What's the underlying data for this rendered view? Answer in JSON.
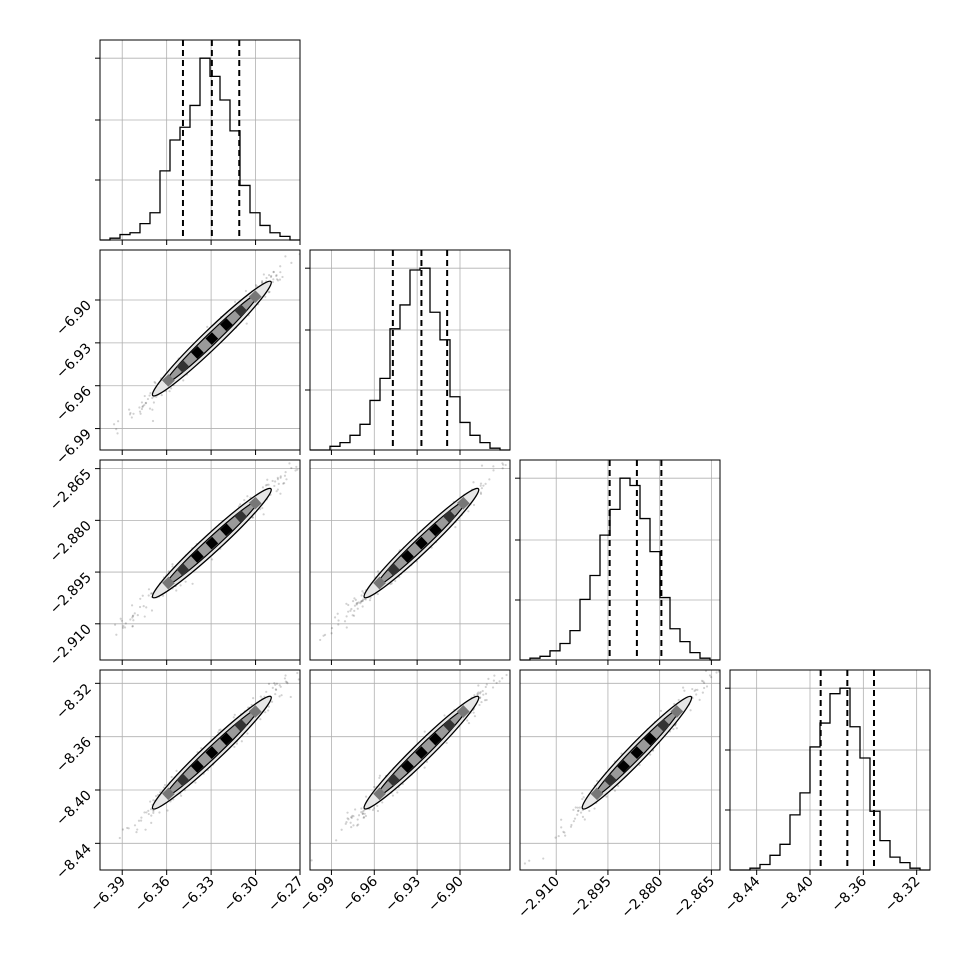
{
  "chart_data": {
    "type": "corner",
    "title": "",
    "parameters": [
      {
        "range": [
          -6.405,
          -6.27
        ],
        "ticks": [
          "−6.39",
          "−6.36",
          "−6.33",
          "−6.30",
          "−6.27"
        ],
        "tick_values": [
          -6.39,
          -6.36,
          -6.33,
          -6.3,
          -6.27
        ],
        "quantiles": [
          -6.349,
          -6.3295,
          -6.311
        ],
        "hist": {
          "edges_start": -6.405,
          "bin_width": 0.00675,
          "counts": [
            0,
            0.01,
            0.03,
            0.04,
            0.09,
            0.15,
            0.38,
            0.55,
            0.62,
            0.74,
            1.0,
            0.9,
            0.77,
            0.6,
            0.3,
            0.15,
            0.08,
            0.04,
            0.02,
            0
          ]
        }
      },
      {
        "range": [
          -7.005,
          -6.865
        ],
        "ticks": [
          "−6.99",
          "−6.96",
          "−6.93",
          "−6.90"
        ],
        "tick_values": [
          -6.99,
          -6.96,
          -6.93,
          -6.9
        ],
        "quantiles": [
          -6.947,
          -6.927,
          -6.909
        ],
        "hist": {
          "edges_start": -7.005,
          "bin_width": 0.007,
          "counts": [
            0,
            0,
            0.02,
            0.04,
            0.08,
            0.14,
            0.27,
            0.39,
            0.66,
            0.79,
            0.98,
            0.99,
            0.75,
            0.6,
            0.29,
            0.15,
            0.08,
            0.04,
            0.01,
            0
          ]
        }
      },
      {
        "range": [
          -2.9205,
          -2.8625
        ],
        "ticks": [
          "−2.910",
          "−2.895",
          "−2.880",
          "−2.865"
        ],
        "tick_values": [
          -2.91,
          -2.895,
          -2.88,
          -2.865
        ],
        "quantiles": [
          -2.8945,
          -2.8866,
          -2.8795
        ],
        "hist": {
          "edges_start": -2.9205,
          "bin_width": 0.0029,
          "counts": [
            0,
            0.01,
            0.02,
            0.05,
            0.09,
            0.16,
            0.33,
            0.46,
            0.68,
            0.82,
            0.99,
            0.95,
            0.77,
            0.59,
            0.34,
            0.17,
            0.1,
            0.04,
            0.01,
            0
          ]
        }
      },
      {
        "range": [
          -8.46,
          -8.31
        ],
        "ticks": [
          "−8.44",
          "−8.40",
          "−8.36",
          "−8.32"
        ],
        "tick_values": [
          -8.44,
          -8.4,
          -8.36,
          -8.32
        ],
        "quantiles": [
          -8.392,
          -8.372,
          -8.352
        ],
        "hist": {
          "edges_start": -8.46,
          "bin_width": 0.0075,
          "counts": [
            0,
            0,
            0.01,
            0.03,
            0.08,
            0.14,
            0.3,
            0.42,
            0.67,
            0.8,
            0.96,
            0.99,
            0.78,
            0.61,
            0.32,
            0.16,
            0.07,
            0.04,
            0.01,
            0
          ]
        }
      }
    ],
    "grid": true
  }
}
